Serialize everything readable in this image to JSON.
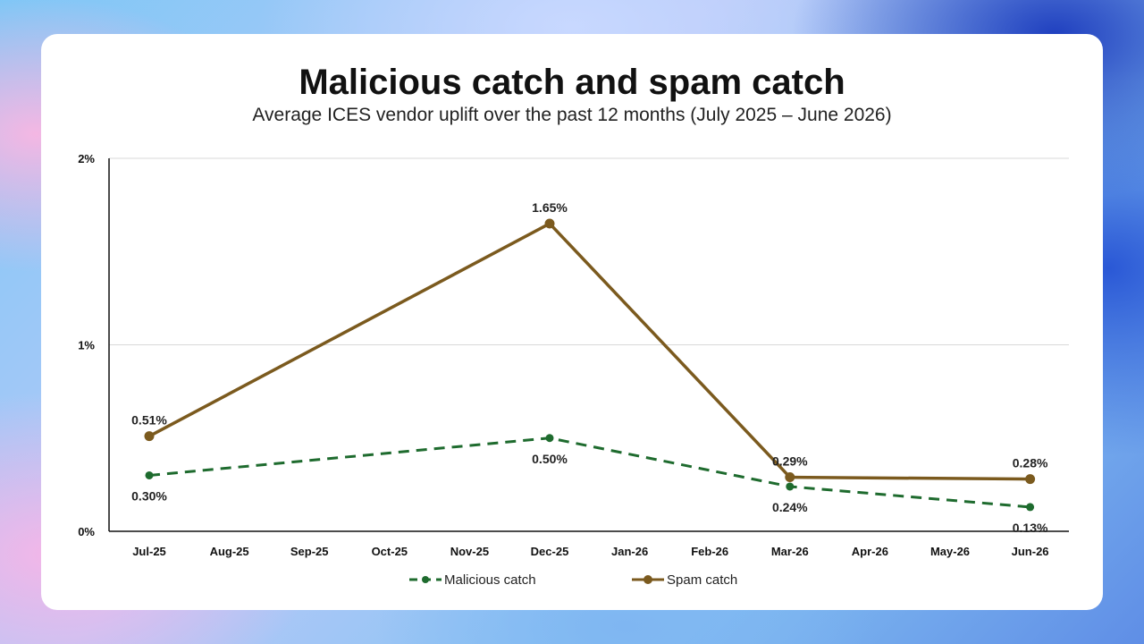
{
  "chart_data": {
    "type": "line",
    "title": "Malicious catch and spam catch",
    "subtitle": "Average ICES vendor uplift over the past 12 months (July 2025 – June 2026)",
    "categories": [
      "Jul-25",
      "Aug-25",
      "Sep-25",
      "Oct-25",
      "Nov-25",
      "Dec-25",
      "Jan-26",
      "Feb-26",
      "Mar-26",
      "Apr-26",
      "May-26",
      "Jun-26"
    ],
    "ylim": [
      0,
      2
    ],
    "yticks": [
      {
        "value": 0,
        "label": "0%"
      },
      {
        "value": 1,
        "label": "1%"
      },
      {
        "value": 2,
        "label": "2%"
      }
    ],
    "grid": true,
    "legend_position": "bottom",
    "series": [
      {
        "name": "Malicious catch",
        "color": "#1e6b2e",
        "style": "dashed",
        "points": [
          {
            "x": "Jul-25",
            "y": 0.3,
            "label": "0.30%"
          },
          {
            "x": "Dec-25",
            "y": 0.5,
            "label": "0.50%"
          },
          {
            "x": "Mar-26",
            "y": 0.24,
            "label": "0.24%"
          },
          {
            "x": "Jun-26",
            "y": 0.13,
            "label": "0.13%"
          }
        ]
      },
      {
        "name": "Spam catch",
        "color": "#7b5a1e",
        "style": "solid",
        "points": [
          {
            "x": "Jul-25",
            "y": 0.51,
            "label": "0.51%"
          },
          {
            "x": "Dec-25",
            "y": 1.65,
            "label": "1.65%"
          },
          {
            "x": "Mar-26",
            "y": 0.29,
            "label": "0.29%"
          },
          {
            "x": "Jun-26",
            "y": 0.28,
            "label": "0.28%"
          }
        ]
      }
    ]
  }
}
